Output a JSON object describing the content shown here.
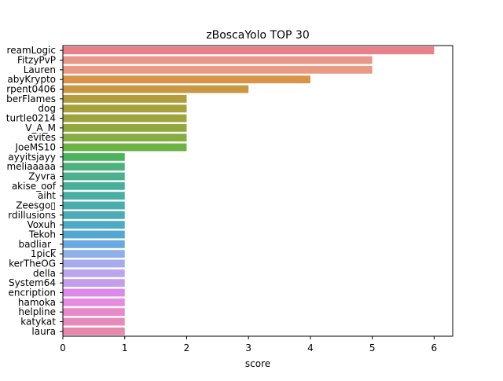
{
  "chart_data": {
    "type": "bar",
    "orientation": "horizontal",
    "title": "zBoscaYolo TOP 30",
    "xlabel": "score",
    "ylabel": "",
    "xlim": [
      0,
      6.3
    ],
    "xticks": [
      0,
      1,
      2,
      3,
      4,
      5,
      6
    ],
    "grid": false,
    "categories": [
      "reamLogic",
      "FitzyPvP",
      "Lauren",
      "abyKrypto",
      "rpent0406",
      "berFlames",
      "dog",
      "turtle0214",
      "V_A_M",
      "evites",
      "JoeMS10",
      "ayyitsjayy",
      "meliaaaaa",
      "Zyvra",
      "akise_oof",
      "aiht",
      "Zeesgo▯",
      "rdillusions",
      "Voxuh",
      "Tekoh",
      "badliar_",
      "1pick",
      "kerTheOG",
      "della",
      "System64",
      "encription",
      "hamoka",
      "helpline",
      "katykat",
      "laura"
    ],
    "values": [
      6,
      5,
      5,
      4,
      3,
      2,
      2,
      2,
      2,
      2,
      2,
      1,
      1,
      1,
      1,
      1,
      1,
      1,
      1,
      1,
      1,
      1,
      1,
      1,
      1,
      1,
      1,
      1,
      1,
      1
    ],
    "colors": [
      "#e8808a",
      "#e89888",
      "#e89a84",
      "#d9944a",
      "#c99844",
      "#b19d3e",
      "#a7a13c",
      "#9fa43e",
      "#90a83e",
      "#86ac42",
      "#6db244",
      "#4cb25f",
      "#4cb27c",
      "#4cb08d",
      "#4aaf99",
      "#49aea4",
      "#4aacad",
      "#4babb6",
      "#4eaac4",
      "#53a7d1",
      "#6aa8e0",
      "#8eb0ea",
      "#a7aaee",
      "#b9a6ee",
      "#c29eec",
      "#db8aeb",
      "#e58be0",
      "#e88ac9",
      "#e889bc",
      "#e888ad"
    ]
  }
}
